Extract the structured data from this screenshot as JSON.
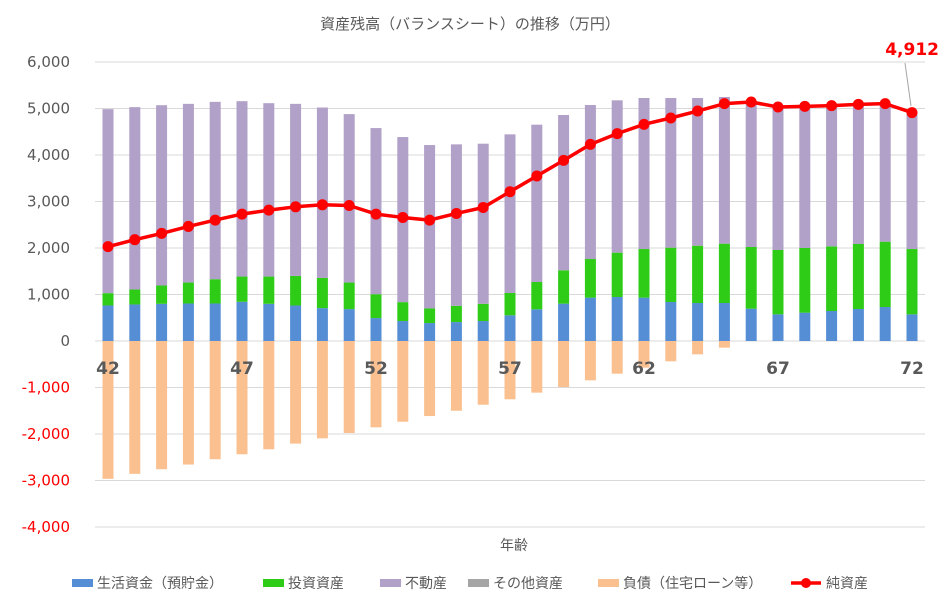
{
  "chart_data": {
    "type": "bar",
    "stacked": true,
    "title": "資産残高（バランスシート）の推移（万円）",
    "xlabel": "年齢",
    "ylabel": "",
    "ylim": [
      -4000,
      6000
    ],
    "yticks": [
      6000,
      5000,
      4000,
      3000,
      2000,
      1000,
      0,
      -1000,
      -2000,
      -3000,
      -4000
    ],
    "ytick_labels": [
      "6,000",
      "5,000",
      "4,000",
      "3,000",
      "2,000",
      "1,000",
      "0",
      "-1,000",
      "-2,000",
      "-3,000",
      "-4,000"
    ],
    "negative_tick_color": "#ff0000",
    "grid": true,
    "legend_position": "bottom",
    "categories": [
      42,
      43,
      44,
      45,
      46,
      47,
      48,
      49,
      50,
      51,
      52,
      53,
      54,
      55,
      56,
      57,
      58,
      59,
      60,
      61,
      62,
      63,
      64,
      65,
      66,
      67,
      68,
      69,
      70,
      71,
      72
    ],
    "xtick_labels": {
      "42": "42",
      "47": "47",
      "52": "52",
      "57": "57",
      "62": "62",
      "67": "67",
      "72": "72"
    },
    "series": [
      {
        "name": "生活資金（預貯金）",
        "type": "bar",
        "color": "#558ed5",
        "values": [
          764,
          786,
          800,
          807,
          807,
          843,
          800,
          764,
          707,
          686,
          493,
          429,
          386,
          407,
          429,
          552,
          681,
          803,
          932,
          946,
          932,
          839,
          817,
          817,
          695,
          573,
          609,
          645,
          688,
          731,
          573
        ]
      },
      {
        "name": "投資資産",
        "type": "bar",
        "color": "#2ecc17",
        "values": [
          265,
          321,
          393,
          450,
          522,
          543,
          586,
          636,
          650,
          571,
          514,
          407,
          314,
          350,
          371,
          480,
          588,
          717,
          831,
          954,
          1046,
          1168,
          1233,
          1276,
          1327,
          1384,
          1391,
          1391,
          1398,
          1405,
          1405
        ]
      },
      {
        "name": "不動産",
        "type": "bar",
        "color": "#b1a0c7",
        "values": [
          3957,
          3922,
          3878,
          3843,
          3814,
          3771,
          3728,
          3700,
          3664,
          3622,
          3572,
          3550,
          3514,
          3472,
          3443,
          3412,
          3383,
          3340,
          3312,
          3276,
          3248,
          3219,
          3176,
          3154,
          3118,
          3075,
          3047,
          3025,
          3004,
          2968,
          2934
        ]
      },
      {
        "name": "その他資産",
        "type": "bar",
        "color": "#a5a5a5",
        "values": [
          0,
          0,
          0,
          0,
          0,
          0,
          0,
          0,
          0,
          0,
          0,
          0,
          0,
          0,
          0,
          0,
          0,
          0,
          0,
          0,
          0,
          0,
          0,
          0,
          0,
          0,
          0,
          0,
          0,
          0,
          0
        ]
      },
      {
        "name": "負債（住宅ローン等）",
        "type": "bar",
        "color": "#fac090",
        "values": [
          -2964,
          -2857,
          -2757,
          -2657,
          -2543,
          -2436,
          -2329,
          -2207,
          -2093,
          -1979,
          -1857,
          -1736,
          -1614,
          -1500,
          -1371,
          -1254,
          -1111,
          -989,
          -846,
          -703,
          -573,
          -437,
          -287,
          -143,
          0,
          0,
          0,
          0,
          0,
          0,
          0
        ]
      },
      {
        "name": "純資産",
        "type": "line",
        "color": "#ff0000",
        "values": [
          2029,
          2179,
          2314,
          2464,
          2600,
          2729,
          2814,
          2886,
          2929,
          2914,
          2729,
          2657,
          2600,
          2743,
          2871,
          3211,
          3548,
          3885,
          4229,
          4459,
          4659,
          4796,
          4946,
          5104,
          5140,
          5032,
          5047,
          5061,
          5090,
          5104,
          4912
        ]
      }
    ],
    "annotations": [
      {
        "category": 72,
        "series": "純資産",
        "text": "4,912",
        "color": "#ff0000"
      }
    ]
  }
}
